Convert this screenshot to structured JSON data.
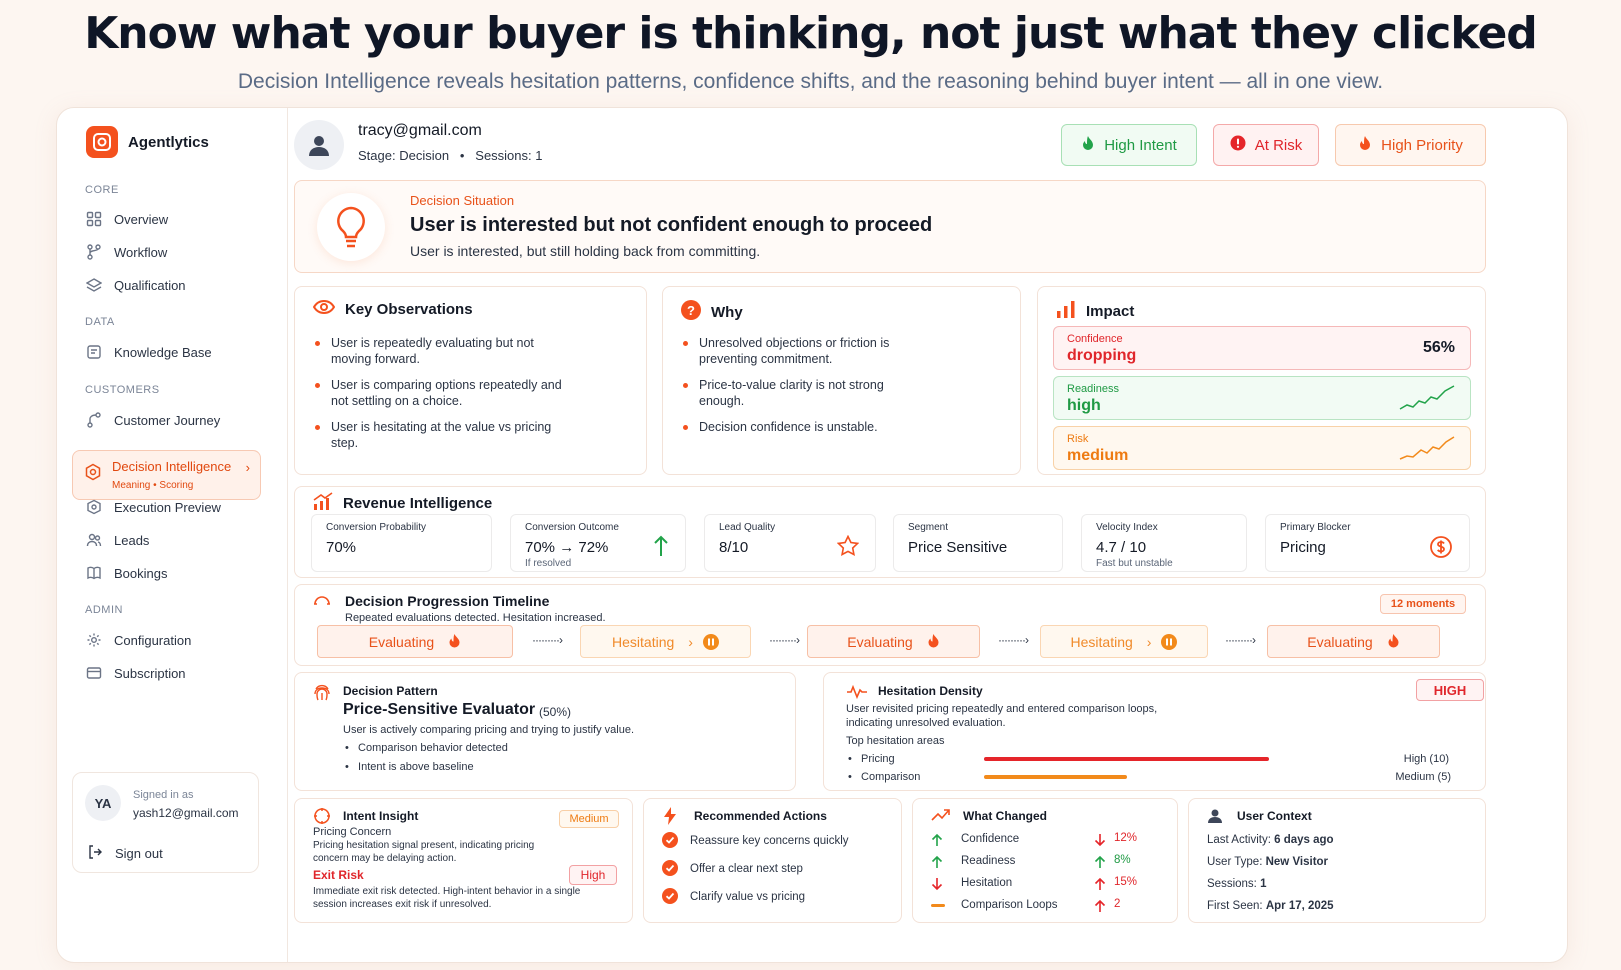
{
  "hero": {
    "title": "Know what your buyer is thinking, not just what they clicked",
    "subtitle": "Decision Intelligence reveals hesitation patterns, confidence shifts, and the reasoning behind buyer intent — all in one view."
  },
  "colors": {
    "accent": "#f4511e",
    "success": "#22a34a",
    "danger": "#e5252a",
    "warning": "#f28a1b"
  },
  "sidebar": {
    "brand": "Agentlytics",
    "sections": {
      "core": "CORE",
      "data": "DATA",
      "customers": "CUSTOMERS",
      "admin": "ADMIN"
    },
    "items": {
      "overview": "Overview",
      "workflow": "Workflow",
      "qualification": "Qualification",
      "knowledge_base": "Knowledge Base",
      "customer_journey": "Customer Journey",
      "decision_intelligence": "Decision Intelligence",
      "decision_intelligence_sub": "Meaning  •  Scoring",
      "execution_preview": "Execution Preview",
      "leads": "Leads",
      "bookings": "Bookings",
      "configuration": "Configuration",
      "subscription": "Subscription"
    },
    "user": {
      "initials": "YA",
      "signed_in_label": "Signed in as",
      "email": "yash12@gmail.com",
      "sign_out": "Sign out"
    }
  },
  "profile": {
    "email": "tracy@gmail.com",
    "meta": "Stage: Decision   •   Sessions: 1"
  },
  "tags": {
    "high_intent": "High Intent",
    "at_risk": "At Risk",
    "high_priority": "High Priority"
  },
  "situation": {
    "label": "Decision Situation",
    "title": "User is interested but not confident enough to proceed",
    "desc": "User is interested, but still holding back from committing."
  },
  "observations": {
    "title": "Key Observations",
    "items": [
      "User is repeatedly evaluating but not moving forward.",
      "User is comparing options repeatedly and not settling on a choice.",
      "User is hesitating at the value vs pricing step."
    ]
  },
  "why": {
    "title": "Why",
    "items": [
      "Unresolved objections or friction is preventing commitment.",
      "Price-to-value clarity is not strong enough.",
      "Decision confidence is unstable."
    ]
  },
  "impact": {
    "title": "Impact",
    "confidence_label": "Confidence",
    "confidence_value": "dropping",
    "confidence_pct": "56%",
    "readiness_label": "Readiness",
    "readiness_value": "high",
    "risk_label": "Risk",
    "risk_value": "medium"
  },
  "revenue": {
    "title": "Revenue Intelligence",
    "metrics": [
      {
        "label": "Conversion Probability",
        "value": "70%",
        "sub": ""
      },
      {
        "label": "Conversion Outcome",
        "value": "70% → 72%",
        "sub": "If resolved"
      },
      {
        "label": "Lead Quality",
        "value": "8/10",
        "sub": ""
      },
      {
        "label": "Segment",
        "value": "Price Sensitive",
        "sub": ""
      },
      {
        "label": "Velocity Index",
        "value": "4.7 / 10",
        "sub": "Fast but unstable"
      },
      {
        "label": "Primary Blocker",
        "value": "Pricing",
        "sub": ""
      }
    ]
  },
  "timeline": {
    "title": "Decision Progression Timeline",
    "subtitle": "Repeated evaluations detected. Hesitation increased.",
    "badge": "12 moments",
    "arrow": "·········›",
    "steps": [
      "Evaluating",
      "Hesitating",
      "Evaluating",
      "Hesitating",
      "Evaluating"
    ],
    "step_extra": "›"
  },
  "pattern": {
    "label": "Decision Pattern",
    "title": "Price-Sensitive Evaluator",
    "pct": "(50%)",
    "desc": "User is actively comparing pricing and trying to justify value.",
    "bullets": [
      "Comparison behavior detected",
      "Intent is above baseline"
    ]
  },
  "density": {
    "title": "Hesitation Density",
    "badge": "HIGH",
    "desc": "User revisited pricing repeatedly and entered comparison loops, indicating unresolved evaluation.",
    "areas_label": "Top hesitation areas",
    "areas": [
      {
        "name": "Pricing",
        "level": "High (10)",
        "value": 10
      },
      {
        "name": "Comparison",
        "level": "Medium (5)",
        "value": 5
      }
    ]
  },
  "intent": {
    "title": "Intent Insight",
    "concern_title": "Pricing Concern",
    "concern_badge": "Medium",
    "concern_desc": "Pricing hesitation signal present, indicating pricing concern may be delaying action.",
    "exit_title": "Exit Risk",
    "exit_badge": "High",
    "exit_desc": "Immediate exit risk detected. High-intent behavior in a single session increases exit risk if unresolved."
  },
  "actions": {
    "title": "Recommended Actions",
    "items": [
      "Reassure key concerns quickly",
      "Offer a clear next step",
      "Clarify value vs pricing"
    ]
  },
  "changed": {
    "title": "What Changed",
    "rows": [
      {
        "label": "Confidence",
        "delta": "12%"
      },
      {
        "label": "Readiness",
        "delta": "8%"
      },
      {
        "label": "Hesitation",
        "delta": "15%"
      },
      {
        "label": "Comparison Loops",
        "delta": "2"
      }
    ]
  },
  "context": {
    "title": "User Context",
    "rows": [
      {
        "label": "Last Activity:",
        "value": "6 days ago"
      },
      {
        "label": "User Type:",
        "value": "New Visitor"
      },
      {
        "label": "Sessions:",
        "value": "1"
      },
      {
        "label": "First Seen:",
        "value": "Apr 17, 2025"
      }
    ]
  }
}
